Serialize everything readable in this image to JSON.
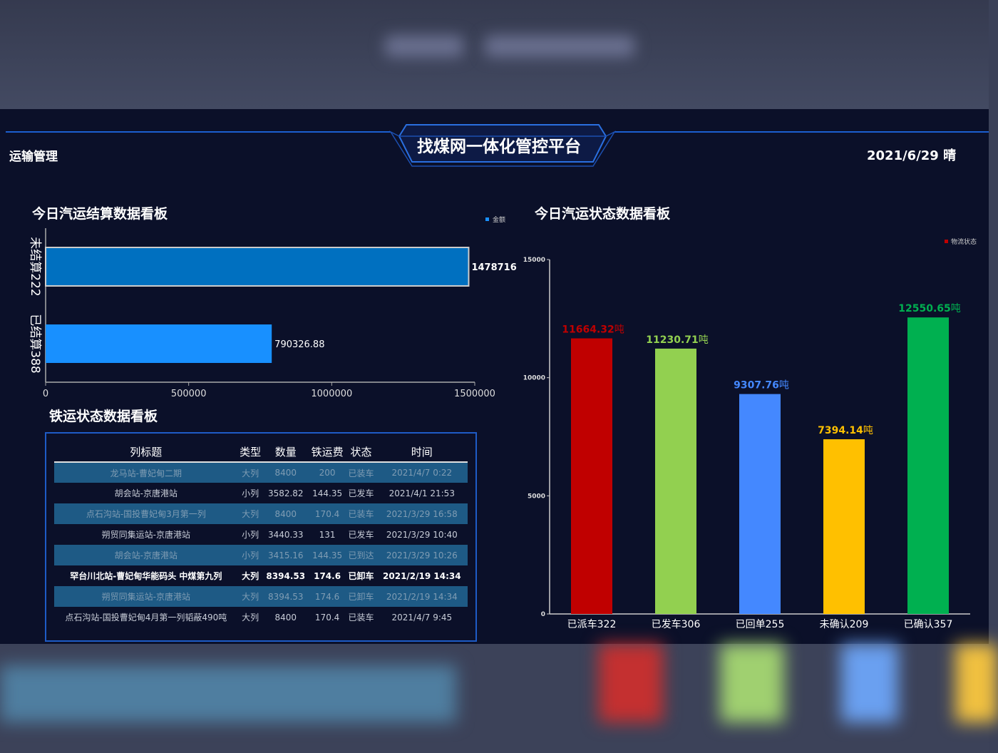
{
  "header": {
    "title": "找煤网一体化管控平台",
    "section": "运输管理",
    "date_weather": "2021/6/29 晴"
  },
  "settlement_panel": {
    "title": "今日汽运结算数据看板"
  },
  "rail_panel": {
    "title": "铁运状态数据看板",
    "columns": [
      "列标题",
      "类型",
      "数量",
      "铁运费",
      "状态",
      "时间"
    ],
    "rows": [
      [
        "龙马站-曹妃甸二期",
        "大列",
        "8400",
        "200",
        "已装车",
        "2021/4/7 0:22"
      ],
      [
        "胡会站-京唐港站",
        "小列",
        "3582.82",
        "144.35",
        "已发车",
        "2021/4/1 21:53"
      ],
      [
        "点石沟站-国投曹妃甸3月第一列",
        "大列",
        "8400",
        "170.4",
        "已装车",
        "2021/3/29 16:58"
      ],
      [
        "朔贸同集运站-京唐港站",
        "小列",
        "3440.33",
        "131",
        "已发车",
        "2021/3/29 10:40"
      ],
      [
        "胡会站-京唐港站",
        "小列",
        "3415.16",
        "144.35",
        "已到达",
        "2021/3/29 10:26"
      ],
      [
        "罕台川北站-曹妃甸华能码头 中煤第九列",
        "大列",
        "8394.53",
        "174.6",
        "已卸车",
        "2021/2/19 14:34"
      ],
      [
        "朔贸同集运站-京唐港站",
        "大列",
        "8394.53",
        "174.6",
        "已卸车",
        "2021/2/19 14:34"
      ],
      [
        "点石沟站-国投曹妃甸4月第一列韬蔽490吨",
        "大列",
        "8400",
        "170.4",
        "已装车",
        "2021/4/7 9:45"
      ]
    ]
  },
  "status_panel": {
    "title": "今日汽运状态数据看板"
  },
  "chart_data": [
    {
      "type": "bar",
      "orientation": "horizontal",
      "categories": [
        "未结算222",
        "已结算388"
      ],
      "series": [
        {
          "name": "金额",
          "values": [
            1478716,
            790326.88
          ],
          "colors": [
            "#0070c0",
            "#1890ff"
          ]
        }
      ],
      "data_labels": [
        "1478716",
        "790326.88"
      ],
      "xlim": [
        0,
        1500000
      ],
      "xticks": [
        "0",
        "500000",
        "1000000",
        "1500000"
      ],
      "legend": "top-right",
      "grid": false
    },
    {
      "type": "bar",
      "categories": [
        "已派车322",
        "已发车306",
        "已回单255",
        "未确认209",
        "已确认357"
      ],
      "series": [
        {
          "name": "物流状态",
          "values": [
            11664.32,
            11230.71,
            9307.76,
            7394.14,
            12550.65
          ]
        }
      ],
      "colors": [
        "#c00000",
        "#92d050",
        "#4488ff",
        "#ffc000",
        "#00b050"
      ],
      "unit": "吨",
      "ylim": [
        0,
        15000
      ],
      "yticks": [
        "0",
        "5000",
        "10000",
        "15000"
      ],
      "legend": "top-right",
      "legend_color": "#c00000",
      "grid": false
    }
  ]
}
